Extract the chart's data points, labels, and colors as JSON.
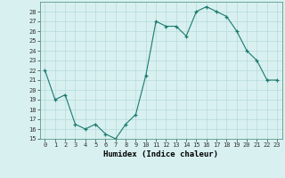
{
  "x": [
    0,
    1,
    2,
    3,
    4,
    5,
    6,
    7,
    8,
    9,
    10,
    11,
    12,
    13,
    14,
    15,
    16,
    17,
    18,
    19,
    20,
    21,
    22,
    23
  ],
  "y": [
    22,
    19,
    19.5,
    16.5,
    16,
    16.5,
    15.5,
    15,
    16.5,
    17.5,
    21.5,
    27,
    26.5,
    26.5,
    25.5,
    28,
    28.5,
    28,
    27.5,
    26,
    24,
    23,
    21,
    21
  ],
  "line_color": "#1a7a6e",
  "marker_color": "#1a7a6e",
  "bg_color": "#d8f0f0",
  "grid_color": "#b8dada",
  "xlabel": "Humidex (Indice chaleur)",
  "ylim": [
    15,
    29
  ],
  "xlim": [
    -0.5,
    23.5
  ],
  "yticks": [
    15,
    16,
    17,
    18,
    19,
    20,
    21,
    22,
    23,
    24,
    25,
    26,
    27,
    28
  ],
  "xticks": [
    0,
    1,
    2,
    3,
    4,
    5,
    6,
    7,
    8,
    9,
    10,
    11,
    12,
    13,
    14,
    15,
    16,
    17,
    18,
    19,
    20,
    21,
    22,
    23
  ],
  "xtick_labels": [
    "0",
    "1",
    "2",
    "3",
    "4",
    "5",
    "6",
    "7",
    "8",
    "9",
    "10",
    "11",
    "12",
    "13",
    "14",
    "15",
    "16",
    "17",
    "18",
    "19",
    "20",
    "21",
    "22",
    "23"
  ]
}
